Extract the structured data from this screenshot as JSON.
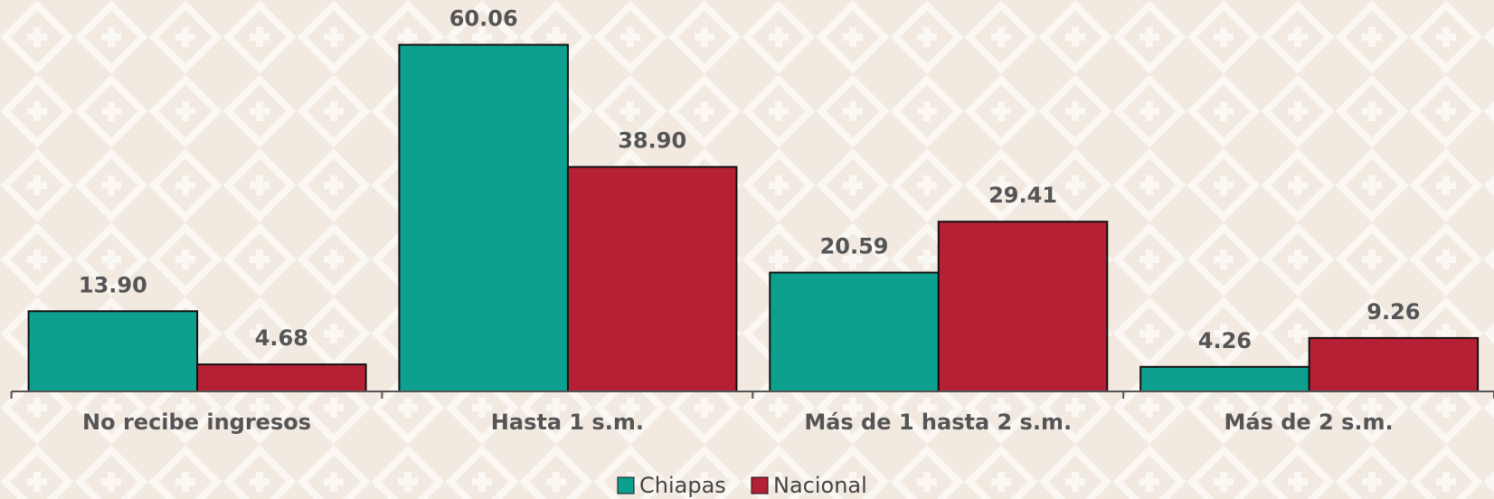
{
  "chart_data": {
    "type": "bar",
    "categories": [
      "No recibe ingresos",
      "Hasta 1 s.m.",
      "Más de 1 hasta 2 s.m.",
      "Más de 2 s.m."
    ],
    "series": [
      {
        "name": "Chiapas",
        "color": "#0ea08e",
        "values": [
          13.9,
          60.06,
          20.59,
          4.26
        ],
        "value_labels": [
          "13.90",
          "60.06",
          "20.59",
          "4.26"
        ]
      },
      {
        "name": "Nacional",
        "color": "#b52035",
        "values": [
          4.68,
          38.9,
          29.41,
          9.26
        ],
        "value_labels": [
          "4.68",
          "38.90",
          "29.41",
          "9.26"
        ]
      }
    ],
    "ylim": [
      0,
      65
    ],
    "legend": "bottom"
  }
}
